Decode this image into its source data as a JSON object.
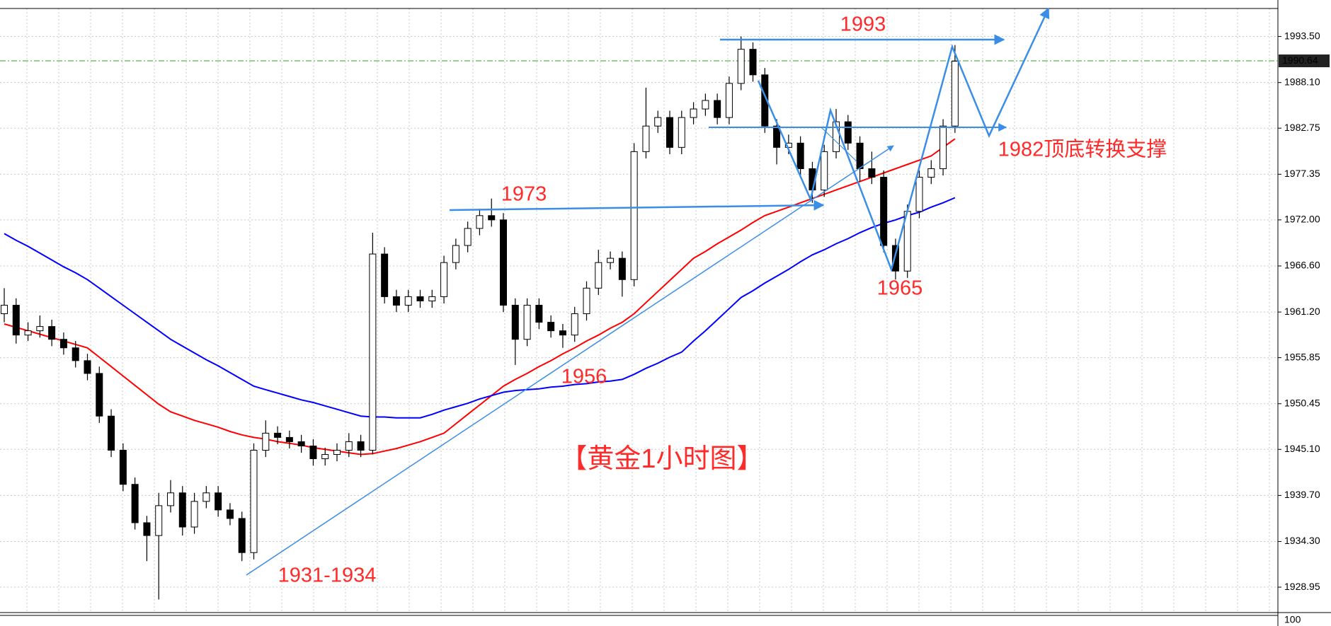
{
  "chart_data": {
    "type": "candlestick",
    "title": "【黄金1小时图】",
    "ylim": [
      1925.97,
      1996.78
    ],
    "yticks": [
      1928.95,
      {
        "value": 1934.3,
        "label": "1934.30"
      },
      {
        "value": 1939.7,
        "label": "1939.70"
      },
      {
        "value": 1945.1,
        "label": "1945.10"
      },
      1950.45,
      1955.85,
      {
        "value": 1961.2,
        "label": "1961.20"
      },
      {
        "value": 1966.6,
        "label": "1966.60"
      },
      {
        "value": 1972,
        "label": "1972.00"
      },
      1977.35,
      1982.75,
      {
        "value": 1988.1,
        "label": "1988.10"
      },
      {
        "value": 1993.5,
        "label": "1993.50"
      }
    ],
    "grid": true,
    "up_color": "#ffffff",
    "down_color": "#000000",
    "open": [
      1961,
      1962,
      1958.5,
      1959,
      1959.5,
      1958,
      1957,
      1955.5,
      1954,
      1949,
      1945,
      1941,
      1936.5,
      1935,
      1938.5,
      1940,
      1936,
      1939,
      1940,
      1938,
      1937,
      1933,
      1945,
      1947,
      1946.5,
      1946,
      1945.5,
      1944,
      1944.5,
      1945,
      1946,
      1945,
      1968,
      1963,
      1962,
      1963,
      1962.5,
      1963,
      1967,
      1969,
      1971,
      1972.5,
      1972,
      1962,
      1958,
      1962,
      1960,
      1959,
      1958.5,
      1961,
      1964,
      1967,
      1967.5,
      1965,
      1980,
      1983,
      1984,
      1980.5,
      1984,
      1985,
      1986,
      1984,
      1988,
      1992,
      1989,
      1983,
      1980.5,
      1981,
      1978,
      1975.5,
      1980,
      1983.5,
      1981,
      1978,
      1977,
      1969,
      1966,
      1973,
      1977,
      1978,
      1983
    ],
    "high": [
      1964,
      1962.8,
      1960,
      1960.8,
      1960.3,
      1958.8,
      1957.8,
      1956.3,
      1954.8,
      1949.8,
      1945.8,
      1941.8,
      1937.3,
      1940,
      1941.5,
      1940.8,
      1940,
      1940.8,
      1940.8,
      1938.8,
      1937.8,
      1945.8,
      1948.5,
      1947.8,
      1947.3,
      1946.8,
      1946.3,
      1945.3,
      1945.8,
      1947,
      1946.8,
      1970.5,
      1968.8,
      1963.8,
      1963.8,
      1963.8,
      1963.8,
      1967.8,
      1969.8,
      1971.8,
      1973.3,
      1974.5,
      1972.8,
      1962.8,
      1962.8,
      1962.8,
      1960.8,
      1959.8,
      1961.8,
      1964.8,
      1968.5,
      1968.3,
      1968.3,
      1981,
      1987.5,
      1984.8,
      1984.8,
      1984.8,
      1985.8,
      1986.8,
      1986.8,
      1988.8,
      1993.5,
      1992.8,
      1989.8,
      1983.8,
      1982,
      1981.8,
      1978.8,
      1980.8,
      1985,
      1984.3,
      1981.8,
      1980,
      1977.8,
      1969.8,
      1973.8,
      1977.8,
      1979,
      1983.8,
      1992.5
    ],
    "low": [
      1960,
      1957.5,
      1957.8,
      1958.2,
      1957.2,
      1956.2,
      1954.7,
      1953.2,
      1948.2,
      1944.2,
      1940.2,
      1935.7,
      1932,
      1927.5,
      1937.7,
      1935,
      1935.2,
      1938.2,
      1937.2,
      1936.2,
      1932,
      1932.2,
      1944.2,
      1945.7,
      1945.2,
      1944.7,
      1943.2,
      1943.2,
      1943.7,
      1944.2,
      1944.2,
      1944.5,
      1962.2,
      1961.2,
      1961.2,
      1961.7,
      1961.7,
      1962.2,
      1966.2,
      1968.2,
      1970.2,
      1971.2,
      1961.2,
      1955,
      1957.2,
      1959.2,
      1958.2,
      1957,
      1957.7,
      1960.2,
      1963.2,
      1966.2,
      1963,
      1964.2,
      1979.2,
      1982.2,
      1979.7,
      1979.7,
      1983.2,
      1984.2,
      1983.2,
      1983.2,
      1987.2,
      1988.2,
      1982.2,
      1978.5,
      1979.7,
      1977.2,
      1974,
      1974.7,
      1979.2,
      1980.2,
      1976.5,
      1976.2,
      1968.2,
      1965,
      1965.2,
      1972.2,
      1976.2,
      1977.2,
      1982.2
    ],
    "close": [
      1962,
      1958.5,
      1959,
      1959.5,
      1958,
      1957,
      1955.5,
      1954,
      1949,
      1945,
      1941,
      1936.5,
      1935,
      1938.5,
      1940,
      1936,
      1939,
      1940,
      1938,
      1937,
      1933,
      1945,
      1947,
      1946.5,
      1946,
      1945.5,
      1944,
      1944.5,
      1945,
      1946,
      1945,
      1968,
      1963,
      1962,
      1963,
      1962.5,
      1963,
      1967,
      1969,
      1971,
      1972.5,
      1972,
      1962,
      1958,
      1962,
      1960,
      1959,
      1958.5,
      1961,
      1964,
      1967,
      1967.5,
      1965,
      1980,
      1983,
      1984,
      1980.5,
      1984,
      1985,
      1986,
      1984,
      1988,
      1992,
      1989,
      1983,
      1980.5,
      1981,
      1978,
      1975.5,
      1980,
      1983.5,
      1981,
      1978,
      1977,
      1969,
      1966,
      1973,
      1977,
      1978,
      1983,
      1990.6
    ],
    "lines": [
      {
        "color": "#ff0000",
        "values": [
          1959.8,
          1959.4,
          1959,
          1958.6,
          1958.2,
          1957.8,
          1957.4,
          1957,
          1955.9,
          1954.8,
          1953.7,
          1952.6,
          1951.5,
          1950.4,
          1949.5,
          1949,
          1948.5,
          1948.1,
          1947.7,
          1947.2,
          1946.8,
          1946.5,
          1946.3,
          1946,
          1945.8,
          1945.6,
          1945.3,
          1945.1,
          1944.9,
          1944.7,
          1944.5,
          1944.6,
          1944.9,
          1945.2,
          1945.6,
          1946,
          1946.5,
          1947,
          1948.1,
          1949.2,
          1950.3,
          1951.4,
          1952.5,
          1953.3,
          1954,
          1954.8,
          1955.5,
          1956.3,
          1957,
          1957.8,
          1958.5,
          1959.3,
          1960,
          1961,
          1962.3,
          1963.6,
          1964.9,
          1966.2,
          1967.5,
          1968.3,
          1969.2,
          1970,
          1970.8,
          1971.7,
          1972.5,
          1973,
          1973.5,
          1974,
          1974.5,
          1975,
          1975.5,
          1976,
          1976.5,
          1977,
          1977.5,
          1978,
          1978.5,
          1979,
          1979.5,
          1980.5,
          1981.5
        ]
      },
      {
        "color": "#0000ff",
        "values": [
          1970.4,
          1969.6,
          1968.9,
          1968.1,
          1967.3,
          1966.5,
          1965.8,
          1965,
          1964,
          1963,
          1962,
          1961,
          1960,
          1959,
          1958,
          1957.2,
          1956.4,
          1955.6,
          1954.9,
          1954.1,
          1953.3,
          1952.5,
          1952.1,
          1951.7,
          1951.3,
          1950.9,
          1950.6,
          1950.2,
          1949.8,
          1949.4,
          1949,
          1948.9,
          1948.9,
          1948.8,
          1948.8,
          1948.8,
          1949.2,
          1949.7,
          1950.1,
          1950.5,
          1951,
          1951.4,
          1951.8,
          1952,
          1952.1,
          1952.2,
          1952.4,
          1952.5,
          1952.7,
          1952.8,
          1953,
          1953.1,
          1953.3,
          1953.9,
          1954.6,
          1955.2,
          1955.9,
          1956.5,
          1957.8,
          1959,
          1960.3,
          1961.6,
          1962.9,
          1963.7,
          1964.6,
          1965.4,
          1966.2,
          1967.1,
          1967.9,
          1968.5,
          1969.2,
          1969.8,
          1970.5,
          1971.1,
          1971.6,
          1972,
          1972.5,
          1972.9,
          1973.5,
          1974,
          1974.6
        ]
      }
    ],
    "current_price": 1990.64,
    "current_price_color": "#2ca02c",
    "annotations": [
      "1993",
      "1973",
      "1956",
      "1965",
      "1931-1934",
      "1982顶底转换支撑"
    ],
    "subwindow_ytick": 100
  }
}
